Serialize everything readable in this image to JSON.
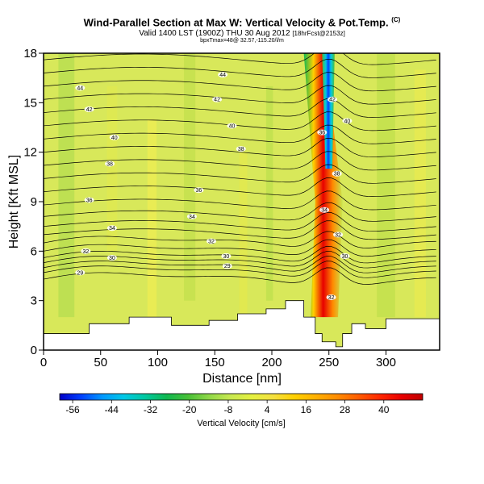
{
  "header": {
    "title": "Wind-Parallel Section at Max W: Vertical Velocity & Pot.Temp.",
    "title_mark": "(C)",
    "valid_line": "Valid 1400 LST (1900Z) THU 30 Aug 2012",
    "valid_suffix": "[18hrFcst@2153z]",
    "params_line": "bpxTmax=48@ 32.57,-115.20/l/m"
  },
  "chart_data": {
    "type": "heatmap",
    "title": "Wind-Parallel Section at Max W: Vertical Velocity & Pot.Temp.",
    "xlabel": "Distance [nm]",
    "ylabel": "Height [Kft MSL]",
    "xlim": [
      0,
      347
    ],
    "ylim": [
      0,
      18
    ],
    "xticks": [
      0,
      50,
      100,
      150,
      200,
      250,
      300
    ],
    "xtick_labels": [
      "0",
      "50",
      "100",
      "150",
      "200",
      "250",
      "300"
    ],
    "yticks": [
      0,
      3,
      6,
      9,
      12,
      15,
      18
    ],
    "ytick_labels": [
      "0",
      "3",
      "6",
      "9",
      "12",
      "15",
      "18"
    ],
    "colorbar": {
      "label": "Vertical Velocity [cm/s]",
      "min": -60,
      "max": 52,
      "tick_values": [
        -56,
        -44,
        -32,
        -20,
        -8,
        4,
        16,
        28,
        40
      ],
      "tick_labels": [
        "-56",
        "-44",
        "-32",
        "-20",
        "-8",
        "4",
        "16",
        "28",
        "40"
      ],
      "colors": [
        "#0000c8",
        "#0040ff",
        "#0098ff",
        "#00c8e6",
        "#00c8a0",
        "#10b850",
        "#48c038",
        "#90d848",
        "#c8e850",
        "#e4f040",
        "#f4e040",
        "#ffd000",
        "#ffb000",
        "#ff8c00",
        "#ff5c00",
        "#ff2800",
        "#e80000",
        "#c00000"
      ]
    },
    "vertical_velocity": {
      "background": "#d8e85a",
      "updraft_core": {
        "x": 244,
        "y_range": [
          2,
          18
        ],
        "max_cm_s": 50
      },
      "downdraft_core": {
        "x": 250,
        "y_range": [
          11,
          18
        ],
        "min_cm_s": -56
      }
    },
    "theta_contours": [
      {
        "level": 29,
        "label": "29",
        "x": 32,
        "y": 4.7
      },
      {
        "level": 29,
        "label": "29",
        "x": 161,
        "y": 5.1
      },
      {
        "level": 30,
        "label": "30",
        "x": 60,
        "y": 5.6
      },
      {
        "level": 30,
        "label": "30",
        "x": 160,
        "y": 5.7
      },
      {
        "level": 32,
        "label": "32",
        "x": 37,
        "y": 6.0
      },
      {
        "level": 32,
        "label": "32",
        "x": 147,
        "y": 6.6
      },
      {
        "level": 34,
        "label": "34",
        "x": 60,
        "y": 7.4
      },
      {
        "level": 34,
        "label": "34",
        "x": 130,
        "y": 8.1
      },
      {
        "level": 36,
        "label": "36",
        "x": 40,
        "y": 9.1
      },
      {
        "level": 36,
        "label": "36",
        "x": 136,
        "y": 9.7
      },
      {
        "level": 38,
        "label": "38",
        "x": 58,
        "y": 11.3
      },
      {
        "level": 38,
        "label": "38",
        "x": 173,
        "y": 12.2
      },
      {
        "level": 40,
        "label": "40",
        "x": 62,
        "y": 12.9
      },
      {
        "level": 40,
        "label": "40",
        "x": 165,
        "y": 13.6
      },
      {
        "level": 42,
        "label": "42",
        "x": 40,
        "y": 14.6
      },
      {
        "level": 42,
        "label": "42",
        "x": 152,
        "y": 15.2
      },
      {
        "level": 44,
        "label": "44",
        "x": 32,
        "y": 15.9
      },
      {
        "level": 44,
        "label": "44",
        "x": 157,
        "y": 16.7
      },
      {
        "level": 36,
        "label": "36",
        "x": 244,
        "y": 13.2
      },
      {
        "level": 34,
        "label": "34",
        "x": 246,
        "y": 8.5
      },
      {
        "level": 32,
        "label": "32",
        "x": 258,
        "y": 7.0
      },
      {
        "level": 30,
        "label": "30",
        "x": 264,
        "y": 5.7
      },
      {
        "level": 38,
        "label": "38",
        "x": 257,
        "y": 10.7
      },
      {
        "level": 40,
        "label": "40",
        "x": 266,
        "y": 13.9
      },
      {
        "level": 42,
        "label": "42",
        "x": 253,
        "y": 15.2
      },
      {
        "level": 32,
        "label": "32",
        "x": 252,
        "y": 3.2
      }
    ],
    "terrain": [
      [
        0,
        1.0
      ],
      [
        40,
        1.0
      ],
      [
        40,
        1.6
      ],
      [
        75,
        1.6
      ],
      [
        75,
        2.0
      ],
      [
        112,
        2.0
      ],
      [
        112,
        1.5
      ],
      [
        145,
        1.5
      ],
      [
        145,
        1.8
      ],
      [
        170,
        1.8
      ],
      [
        170,
        2.2
      ],
      [
        195,
        2.2
      ],
      [
        195,
        2.5
      ],
      [
        212,
        2.5
      ],
      [
        212,
        3.0
      ],
      [
        228,
        3.0
      ],
      [
        228,
        2.0
      ],
      [
        238,
        2.0
      ],
      [
        238,
        1.0
      ],
      [
        244,
        1.0
      ],
      [
        244,
        0.5
      ],
      [
        256,
        0.5
      ],
      [
        256,
        0.2
      ],
      [
        262,
        0.2
      ],
      [
        262,
        1.0
      ],
      [
        270,
        1.0
      ],
      [
        270,
        1.6
      ],
      [
        282,
        1.6
      ],
      [
        282,
        1.3
      ],
      [
        300,
        1.3
      ],
      [
        300,
        1.9
      ],
      [
        347,
        1.9
      ]
    ]
  }
}
